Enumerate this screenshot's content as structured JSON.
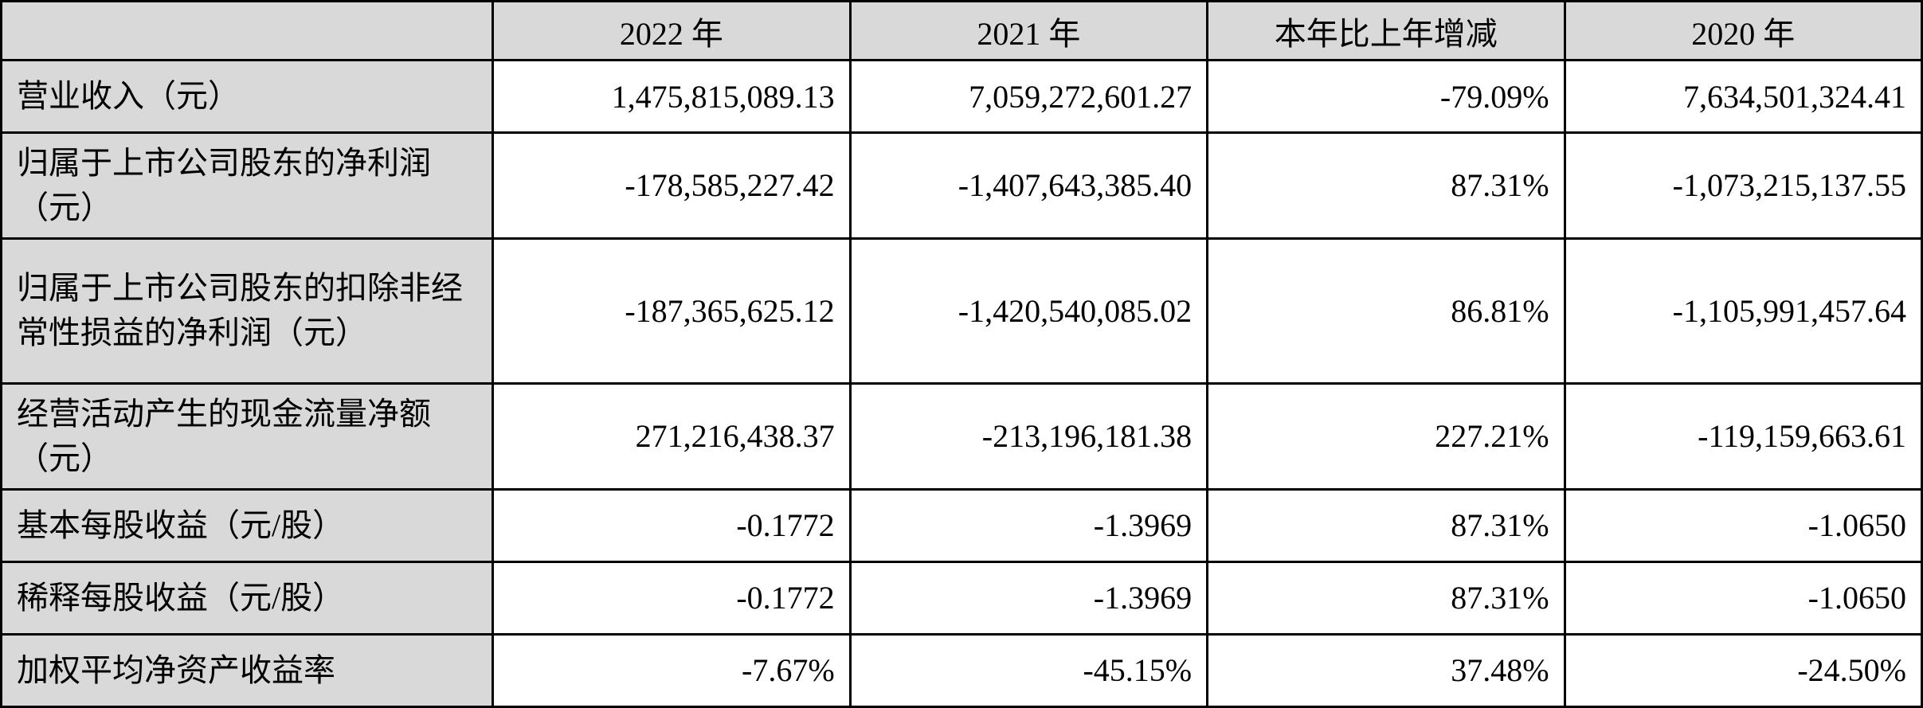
{
  "table": {
    "font_size_pt": 30,
    "text_color": "#000000",
    "border_color": "#000000",
    "header_bg": "#d9d9d9",
    "cell_bg": "#ffffff",
    "columns": {
      "label": "",
      "y2022": "2022 年",
      "y2021": "2021 年",
      "change": "本年比上年增减",
      "y2020": "2020 年"
    },
    "rows": [
      {
        "label": "营业收入（元）",
        "y2022": "1,475,815,089.13",
        "y2021": "7,059,272,601.27",
        "change": "-79.09%",
        "y2020": "7,634,501,324.41",
        "height": "short"
      },
      {
        "label": "归属于上市公司股东的净利润（元）",
        "y2022": "-178,585,227.42",
        "y2021": "-1,407,643,385.40",
        "change": "87.31%",
        "y2020": "-1,073,215,137.55",
        "height": "med"
      },
      {
        "label": "归属于上市公司股东的扣除非经常性损益的净利润（元）",
        "y2022": "-187,365,625.12",
        "y2021": "-1,420,540,085.02",
        "change": "86.81%",
        "y2020": "-1,105,991,457.64",
        "height": "tall"
      },
      {
        "label": "经营活动产生的现金流量净额（元）",
        "y2022": "271,216,438.37",
        "y2021": "-213,196,181.38",
        "change": "227.21%",
        "y2020": "-119,159,663.61",
        "height": "med"
      },
      {
        "label": "基本每股收益（元/股）",
        "y2022": "-0.1772",
        "y2021": "-1.3969",
        "change": "87.31%",
        "y2020": "-1.0650",
        "height": "short"
      },
      {
        "label": "稀释每股收益（元/股）",
        "y2022": "-0.1772",
        "y2021": "-1.3969",
        "change": "87.31%",
        "y2020": "-1.0650",
        "height": "short"
      },
      {
        "label": "加权平均净资产收益率",
        "y2022": "-7.67%",
        "y2021": "-45.15%",
        "change": "37.48%",
        "y2020": "-24.50%",
        "height": "short"
      }
    ]
  }
}
